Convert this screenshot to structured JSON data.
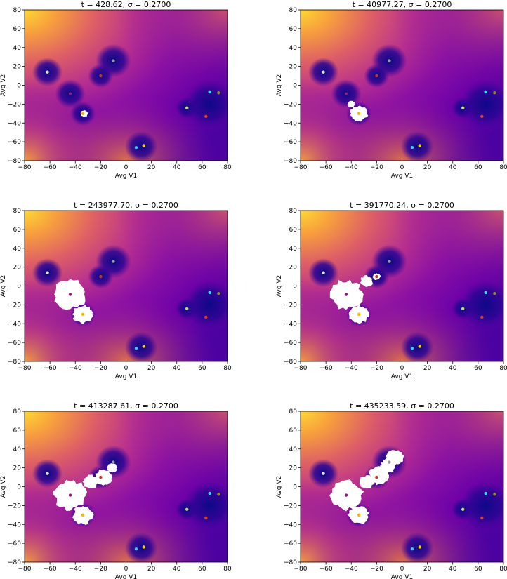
{
  "chart_data": [
    {
      "type": "scatter",
      "title": "t = 428.62, σ = 0.2700",
      "xlabel": "Avg V1",
      "ylabel": "Avg V2",
      "xlim": [
        -80,
        80
      ],
      "ylim": [
        -80,
        80
      ],
      "xticks": [
        -80,
        -60,
        -40,
        -20,
        0,
        20,
        40,
        60,
        80
      ],
      "yticks": [
        -80,
        -60,
        -40,
        -20,
        0,
        20,
        40,
        60,
        80
      ],
      "grid": false,
      "colormap": "plasma",
      "background": "energy landscape (distance field to attractor wells)",
      "points": [
        {
          "x": -62,
          "y": 14,
          "color": "#e8e8e8"
        },
        {
          "x": -10,
          "y": 26,
          "color": "#9a9a9a"
        },
        {
          "x": -20,
          "y": 10,
          "color": "#c0392b"
        },
        {
          "x": -44,
          "y": -9,
          "color": "#8e1a7a"
        },
        {
          "x": -34,
          "y": -30,
          "color": "#f5b800"
        },
        {
          "x": 48,
          "y": -24,
          "color": "#b5e36b"
        },
        {
          "x": 66,
          "y": -7,
          "color": "#2ee0ff"
        },
        {
          "x": 73,
          "y": -8,
          "color": "#8a8a1a"
        },
        {
          "x": 63,
          "y": -33,
          "color": "#d9421c"
        },
        {
          "x": 8,
          "y": -66,
          "color": "#39c8e8"
        },
        {
          "x": 14,
          "y": -64,
          "color": "#f5d000"
        }
      ],
      "explored_region": [
        {
          "x": -33,
          "y": -30,
          "r": 3
        }
      ]
    },
    {
      "type": "scatter",
      "title": "t = 40977.27, σ = 0.2700",
      "xlabel": "Avg V1",
      "ylabel": "Avg V2",
      "xlim": [
        -80,
        80
      ],
      "ylim": [
        -80,
        80
      ],
      "xticks": [
        -80,
        -60,
        -40,
        -20,
        0,
        20,
        40,
        60,
        80
      ],
      "yticks": [
        -80,
        -60,
        -40,
        -20,
        0,
        20,
        40,
        60,
        80
      ],
      "grid": false,
      "colormap": "plasma",
      "points": [
        {
          "x": -62,
          "y": 14,
          "color": "#e8e8e8"
        },
        {
          "x": -10,
          "y": 26,
          "color": "#9a9a9a"
        },
        {
          "x": -20,
          "y": 10,
          "color": "#c0392b"
        },
        {
          "x": -44,
          "y": -9,
          "color": "#8e1a7a"
        },
        {
          "x": -34,
          "y": -30,
          "color": "#f5b800"
        },
        {
          "x": 48,
          "y": -24,
          "color": "#b5e36b"
        },
        {
          "x": 66,
          "y": -7,
          "color": "#2ee0ff"
        },
        {
          "x": 73,
          "y": -8,
          "color": "#8a8a1a"
        },
        {
          "x": 63,
          "y": -33,
          "color": "#d9421c"
        },
        {
          "x": 8,
          "y": -66,
          "color": "#39c8e8"
        },
        {
          "x": 14,
          "y": -64,
          "color": "#f5d000"
        }
      ],
      "explored_region": [
        {
          "x": -34,
          "y": -30,
          "r": 7
        },
        {
          "x": -40,
          "y": -20,
          "r": 3
        }
      ]
    },
    {
      "type": "scatter",
      "title": "t = 243977.70, σ = 0.2700",
      "xlabel": "Avg V1",
      "ylabel": "Avg V2",
      "xlim": [
        -80,
        80
      ],
      "ylim": [
        -80,
        80
      ],
      "xticks": [
        -80,
        -60,
        -40,
        -20,
        0,
        20,
        40,
        60,
        80
      ],
      "yticks": [
        -80,
        -60,
        -40,
        -20,
        0,
        20,
        40,
        60,
        80
      ],
      "grid": false,
      "colormap": "plasma",
      "points": [
        {
          "x": -62,
          "y": 14,
          "color": "#e8e8e8"
        },
        {
          "x": -10,
          "y": 26,
          "color": "#9a9a9a"
        },
        {
          "x": -20,
          "y": 10,
          "color": "#c0392b"
        },
        {
          "x": -44,
          "y": -9,
          "color": "#8e1a7a"
        },
        {
          "x": -34,
          "y": -30,
          "color": "#f5b800"
        },
        {
          "x": 48,
          "y": -24,
          "color": "#b5e36b"
        },
        {
          "x": 66,
          "y": -7,
          "color": "#2ee0ff"
        },
        {
          "x": 73,
          "y": -8,
          "color": "#8a8a1a"
        },
        {
          "x": 63,
          "y": -33,
          "color": "#d9421c"
        },
        {
          "x": 8,
          "y": -66,
          "color": "#39c8e8"
        },
        {
          "x": 14,
          "y": -64,
          "color": "#f5d000"
        }
      ],
      "explored_region": [
        {
          "x": -34,
          "y": -30,
          "r": 8
        },
        {
          "x": -44,
          "y": -9,
          "r": 13
        }
      ]
    },
    {
      "type": "scatter",
      "title": "t = 391770.24, σ = 0.2700",
      "xlabel": "Avg V1",
      "ylabel": "Avg V2",
      "xlim": [
        -80,
        80
      ],
      "ylim": [
        -80,
        80
      ],
      "xticks": [
        -80,
        -60,
        -40,
        -20,
        0,
        20,
        40,
        60,
        80
      ],
      "yticks": [
        -80,
        -60,
        -40,
        -20,
        0,
        20,
        40,
        60,
        80
      ],
      "grid": false,
      "colormap": "plasma",
      "points": [
        {
          "x": -62,
          "y": 14,
          "color": "#e8e8e8"
        },
        {
          "x": -10,
          "y": 26,
          "color": "#9a9a9a"
        },
        {
          "x": -20,
          "y": 10,
          "color": "#c0392b"
        },
        {
          "x": -44,
          "y": -9,
          "color": "#8e1a7a"
        },
        {
          "x": -34,
          "y": -30,
          "color": "#f5b800"
        },
        {
          "x": 48,
          "y": -24,
          "color": "#b5e36b"
        },
        {
          "x": 66,
          "y": -7,
          "color": "#2ee0ff"
        },
        {
          "x": 73,
          "y": -8,
          "color": "#8a8a1a"
        },
        {
          "x": 63,
          "y": -33,
          "color": "#d9421c"
        },
        {
          "x": 8,
          "y": -66,
          "color": "#39c8e8"
        },
        {
          "x": 14,
          "y": -64,
          "color": "#f5d000"
        }
      ],
      "explored_region": [
        {
          "x": -34,
          "y": -30,
          "r": 8
        },
        {
          "x": -44,
          "y": -9,
          "r": 13
        },
        {
          "x": -28,
          "y": 5,
          "r": 5
        },
        {
          "x": -20,
          "y": 10,
          "r": 3
        }
      ]
    },
    {
      "type": "scatter",
      "title": "t = 413287.61, σ = 0.2700",
      "xlabel": "Avg V1",
      "ylabel": "Avg V2",
      "xlim": [
        -80,
        80
      ],
      "ylim": [
        -80,
        80
      ],
      "xticks": [
        -80,
        -60,
        -40,
        -20,
        0,
        20,
        40,
        60,
        80
      ],
      "yticks": [
        -80,
        -60,
        -40,
        -20,
        0,
        20,
        40,
        60,
        80
      ],
      "grid": false,
      "colormap": "plasma",
      "points": [
        {
          "x": -62,
          "y": 14,
          "color": "#e8e8e8"
        },
        {
          "x": -10,
          "y": 26,
          "color": "#9a9a9a"
        },
        {
          "x": -20,
          "y": 10,
          "color": "#c0392b"
        },
        {
          "x": -44,
          "y": -9,
          "color": "#8e1a7a"
        },
        {
          "x": -34,
          "y": -30,
          "color": "#f5b800"
        },
        {
          "x": 48,
          "y": -24,
          "color": "#b5e36b"
        },
        {
          "x": 66,
          "y": -7,
          "color": "#2ee0ff"
        },
        {
          "x": 73,
          "y": -8,
          "color": "#8a8a1a"
        },
        {
          "x": 63,
          "y": -33,
          "color": "#d9421c"
        },
        {
          "x": 8,
          "y": -66,
          "color": "#39c8e8"
        },
        {
          "x": 14,
          "y": -64,
          "color": "#f5d000"
        }
      ],
      "explored_region": [
        {
          "x": -34,
          "y": -30,
          "r": 8
        },
        {
          "x": -44,
          "y": -9,
          "r": 13
        },
        {
          "x": -28,
          "y": 5,
          "r": 6
        },
        {
          "x": -18,
          "y": 10,
          "r": 7
        },
        {
          "x": -11,
          "y": 20,
          "r": 4
        }
      ]
    },
    {
      "type": "scatter",
      "title": "t = 435233.59, σ = 0.2700",
      "xlabel": "Avg V1",
      "ylabel": "Avg V2",
      "xlim": [
        -80,
        80
      ],
      "ylim": [
        -80,
        80
      ],
      "xticks": [
        -80,
        -60,
        -40,
        -20,
        0,
        20,
        40,
        60,
        80
      ],
      "yticks": [
        -80,
        -60,
        -40,
        -20,
        0,
        20,
        40,
        60,
        80
      ],
      "grid": false,
      "colormap": "plasma",
      "points": [
        {
          "x": -62,
          "y": 14,
          "color": "#e8e8e8"
        },
        {
          "x": -10,
          "y": 26,
          "color": "#9a9a9a"
        },
        {
          "x": -20,
          "y": 10,
          "color": "#c0392b"
        },
        {
          "x": -44,
          "y": -9,
          "color": "#8e1a7a"
        },
        {
          "x": -34,
          "y": -30,
          "color": "#f5b800"
        },
        {
          "x": 48,
          "y": -24,
          "color": "#b5e36b"
        },
        {
          "x": 66,
          "y": -7,
          "color": "#2ee0ff"
        },
        {
          "x": 73,
          "y": -8,
          "color": "#8a8a1a"
        },
        {
          "x": 63,
          "y": -33,
          "color": "#d9421c"
        },
        {
          "x": 8,
          "y": -66,
          "color": "#39c8e8"
        },
        {
          "x": 14,
          "y": -64,
          "color": "#f5d000"
        }
      ],
      "explored_region": [
        {
          "x": -34,
          "y": -30,
          "r": 8
        },
        {
          "x": -44,
          "y": -9,
          "r": 13
        },
        {
          "x": -28,
          "y": 5,
          "r": 6
        },
        {
          "x": -18,
          "y": 12,
          "r": 8
        },
        {
          "x": -11,
          "y": 22,
          "r": 6
        },
        {
          "x": -6,
          "y": 31,
          "r": 7
        }
      ]
    }
  ]
}
